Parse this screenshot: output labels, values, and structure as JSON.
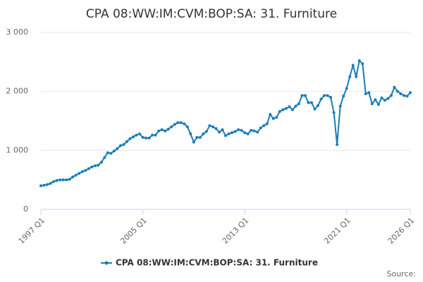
{
  "chart_data": {
    "type": "line",
    "title": "CPA 08:WW:IM:CVM:BOP:SA: 31. Furniture",
    "source": "Source:",
    "categories": [
      "1997 Q1",
      null,
      null,
      null,
      null,
      null,
      null,
      null,
      null,
      null,
      null,
      null,
      null,
      null,
      null,
      null,
      null,
      null,
      null,
      null,
      null,
      null,
      null,
      null,
      null,
      null,
      null,
      null,
      null,
      null,
      null,
      null,
      "2005 Q1",
      null,
      null,
      null,
      null,
      null,
      null,
      null,
      null,
      null,
      null,
      null,
      null,
      null,
      null,
      null,
      null,
      null,
      null,
      null,
      null,
      null,
      null,
      null,
      null,
      null,
      null,
      null,
      null,
      null,
      null,
      null,
      "2013 Q1",
      null,
      null,
      null,
      null,
      null,
      null,
      null,
      null,
      null,
      null,
      null,
      null,
      null,
      null,
      null,
      null,
      null,
      null,
      null,
      null,
      null,
      null,
      null,
      null,
      null,
      null,
      null,
      null,
      null,
      null,
      null,
      "2021 Q1",
      null,
      null,
      null,
      null,
      null,
      null,
      null,
      null,
      null,
      null,
      null,
      null,
      null,
      null,
      null,
      null,
      null,
      null,
      null,
      "2026 Q1"
    ],
    "series": [
      {
        "name": "CPA 08:WW:IM:CVM:BOP:SA: 31. Furniture",
        "color": "#1a7db6",
        "values": [
          400,
          410,
          420,
          440,
          470,
          490,
          500,
          500,
          500,
          510,
          550,
          580,
          610,
          640,
          660,
          690,
          720,
          740,
          750,
          800,
          880,
          960,
          950,
          990,
          1030,
          1080,
          1100,
          1150,
          1200,
          1230,
          1260,
          1280,
          1220,
          1210,
          1210,
          1260,
          1260,
          1330,
          1350,
          1330,
          1360,
          1400,
          1440,
          1470,
          1470,
          1450,
          1400,
          1280,
          1140,
          1220,
          1220,
          1280,
          1320,
          1420,
          1400,
          1370,
          1310,
          1350,
          1250,
          1280,
          1300,
          1320,
          1350,
          1340,
          1300,
          1280,
          1340,
          1330,
          1310,
          1380,
          1420,
          1450,
          1610,
          1540,
          1560,
          1660,
          1690,
          1710,
          1740,
          1690,
          1750,
          1790,
          1930,
          1930,
          1810,
          1810,
          1700,
          1760,
          1870,
          1930,
          1930,
          1900,
          1640,
          1100,
          1750,
          1920,
          2050,
          2250,
          2440,
          2250,
          2520,
          2470,
          1960,
          1980,
          1790,
          1860,
          1780,
          1890,
          1850,
          1880,
          1930,
          2070,
          2000,
          1960,
          1930,
          1920,
          1980
        ]
      }
    ],
    "ylim": [
      0,
      3000
    ],
    "yticks": [
      0,
      {
        "value": 1000,
        "label": "1 000"
      },
      {
        "value": 2000,
        "label": "2 000"
      },
      {
        "value": 3000,
        "label": "3 000"
      }
    ],
    "grid": true
  }
}
